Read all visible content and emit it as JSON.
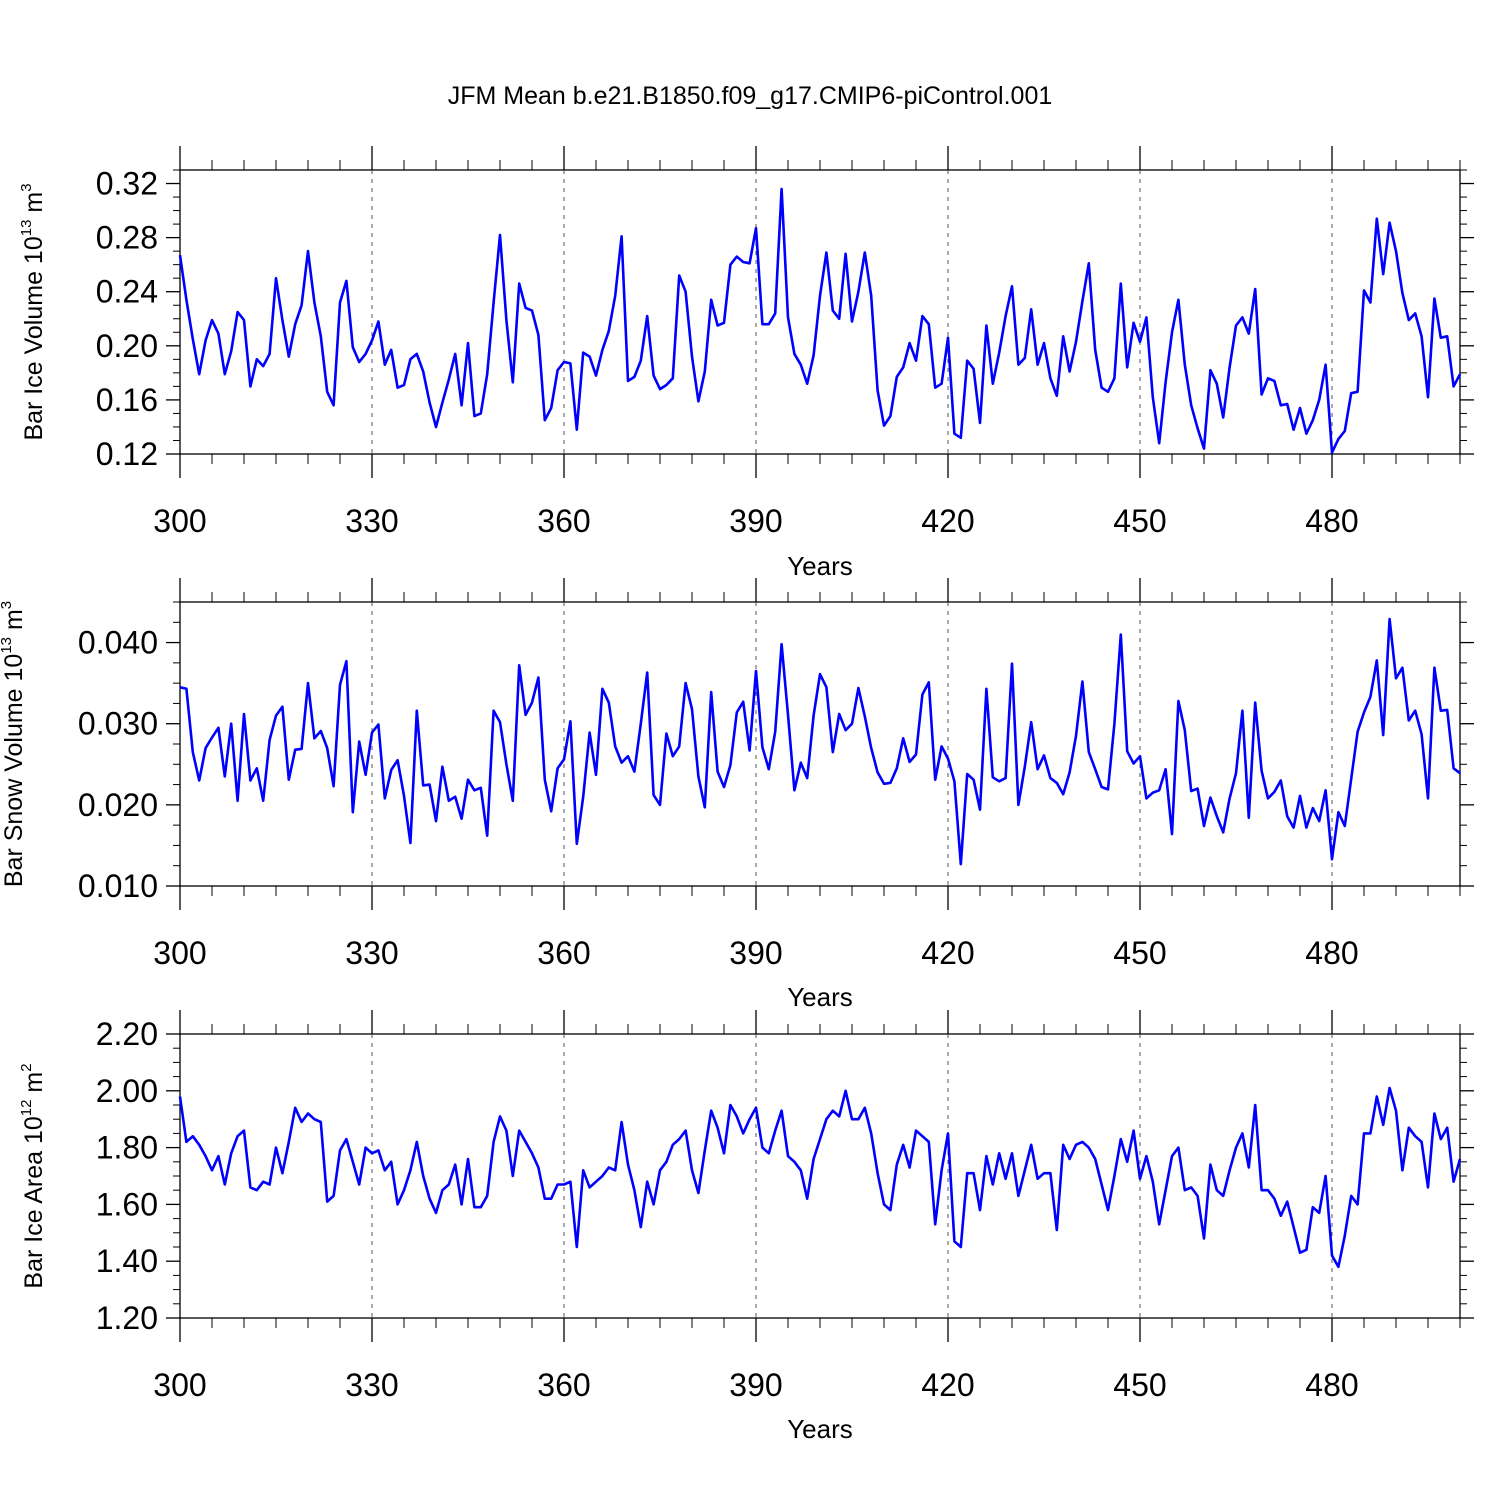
{
  "title": "JFM Mean b.e21.B1850.f09_g17.CMIP6-piControl.001",
  "line_color": "#0000ff",
  "chart_data": [
    {
      "type": "line",
      "ylabel": "Bar Ice Volume 10",
      "ylabel_exp": "13",
      "ylabel_unit": " m",
      "ylabel_unit_exp": "3",
      "xlabel": "Years",
      "xlim": [
        300,
        500
      ],
      "ylim": [
        0.12,
        0.33
      ],
      "x_ticks": [
        300,
        330,
        360,
        390,
        420,
        450,
        480
      ],
      "x_tick_labels": [
        "300",
        "330",
        "360",
        "390",
        "420",
        "450",
        "480"
      ],
      "y_ticks": [
        0.12,
        0.16,
        0.2,
        0.24,
        0.28,
        0.32
      ],
      "y_tick_labels": [
        "0.12",
        "0.16",
        "0.20",
        "0.24",
        "0.28",
        "0.32"
      ],
      "x_start": 300,
      "values": [
        0.267,
        0.234,
        0.205,
        0.179,
        0.204,
        0.219,
        0.209,
        0.179,
        0.196,
        0.225,
        0.219,
        0.17,
        0.19,
        0.185,
        0.194,
        0.25,
        0.219,
        0.192,
        0.216,
        0.23,
        0.27,
        0.232,
        0.207,
        0.166,
        0.156,
        0.232,
        0.248,
        0.199,
        0.188,
        0.194,
        0.204,
        0.218,
        0.186,
        0.197,
        0.169,
        0.171,
        0.19,
        0.194,
        0.181,
        0.158,
        0.14,
        0.158,
        0.175,
        0.194,
        0.156,
        0.202,
        0.148,
        0.15,
        0.179,
        0.232,
        0.282,
        0.219,
        0.173,
        0.246,
        0.228,
        0.226,
        0.208,
        0.145,
        0.154,
        0.182,
        0.188,
        0.187,
        0.138,
        0.195,
        0.192,
        0.178,
        0.197,
        0.211,
        0.237,
        0.281,
        0.174,
        0.177,
        0.189,
        0.222,
        0.178,
        0.168,
        0.171,
        0.176,
        0.252,
        0.24,
        0.192,
        0.159,
        0.181,
        0.234,
        0.215,
        0.217,
        0.26,
        0.266,
        0.262,
        0.261,
        0.287,
        0.216,
        0.216,
        0.224,
        0.316,
        0.221,
        0.194,
        0.186,
        0.172,
        0.193,
        0.237,
        0.269,
        0.226,
        0.22,
        0.268,
        0.218,
        0.24,
        0.269,
        0.237,
        0.167,
        0.141,
        0.148,
        0.177,
        0.184,
        0.202,
        0.189,
        0.222,
        0.216,
        0.169,
        0.172,
        0.206,
        0.135,
        0.132,
        0.189,
        0.183,
        0.143,
        0.215,
        0.172,
        0.195,
        0.222,
        0.244,
        0.186,
        0.191,
        0.227,
        0.186,
        0.202,
        0.176,
        0.163,
        0.207,
        0.181,
        0.203,
        0.233,
        0.261,
        0.197,
        0.169,
        0.166,
        0.176,
        0.246,
        0.184,
        0.217,
        0.203,
        0.221,
        0.162,
        0.128,
        0.173,
        0.21,
        0.234,
        0.186,
        0.156,
        0.139,
        0.124,
        0.182,
        0.172,
        0.147,
        0.184,
        0.215,
        0.221,
        0.209,
        0.242,
        0.164,
        0.176,
        0.174,
        0.156,
        0.157,
        0.138,
        0.154,
        0.135,
        0.145,
        0.16,
        0.186,
        0.121,
        0.131,
        0.137,
        0.165,
        0.166,
        0.241,
        0.232,
        0.294,
        0.253,
        0.291,
        0.27,
        0.239,
        0.219,
        0.224,
        0.207,
        0.162,
        0.235,
        0.206,
        0.207,
        0.17,
        0.179
      ]
    },
    {
      "type": "line",
      "ylabel": "Bar Snow Volume 10",
      "ylabel_exp": "13",
      "ylabel_unit": " m",
      "ylabel_unit_exp": "3",
      "xlabel": "Years",
      "xlim": [
        300,
        500
      ],
      "ylim": [
        0.01,
        0.045
      ],
      "x_ticks": [
        300,
        330,
        360,
        390,
        420,
        450,
        480
      ],
      "x_tick_labels": [
        "300",
        "330",
        "360",
        "390",
        "420",
        "450",
        "480"
      ],
      "y_ticks": [
        0.01,
        0.02,
        0.03,
        0.04
      ],
      "y_tick_labels": [
        "0.010",
        "0.020",
        "0.030",
        "0.040"
      ],
      "x_start": 300,
      "values": [
        0.0345,
        0.0343,
        0.0265,
        0.023,
        0.027,
        0.0283,
        0.0295,
        0.0235,
        0.03,
        0.0205,
        0.0312,
        0.023,
        0.0245,
        0.0205,
        0.028,
        0.031,
        0.0321,
        0.0231,
        0.0268,
        0.0269,
        0.035,
        0.0282,
        0.0291,
        0.027,
        0.0223,
        0.0348,
        0.0377,
        0.0191,
        0.0278,
        0.0237,
        0.0289,
        0.0299,
        0.0208,
        0.0243,
        0.0255,
        0.0211,
        0.0153,
        0.0316,
        0.0224,
        0.0225,
        0.018,
        0.0247,
        0.0205,
        0.021,
        0.0183,
        0.0231,
        0.0218,
        0.0221,
        0.0162,
        0.0316,
        0.0302,
        0.025,
        0.0205,
        0.0372,
        0.0311,
        0.0326,
        0.0357,
        0.0231,
        0.0192,
        0.0245,
        0.0256,
        0.0303,
        0.0152,
        0.021,
        0.0289,
        0.0237,
        0.0343,
        0.0326,
        0.0272,
        0.0252,
        0.026,
        0.0241,
        0.03,
        0.0363,
        0.0212,
        0.02,
        0.0288,
        0.026,
        0.0272,
        0.035,
        0.0318,
        0.0235,
        0.0197,
        0.0339,
        0.0241,
        0.0222,
        0.0249,
        0.0314,
        0.0327,
        0.0267,
        0.0365,
        0.0271,
        0.0244,
        0.029,
        0.0398,
        0.0311,
        0.0218,
        0.0252,
        0.0233,
        0.031,
        0.0361,
        0.0345,
        0.0265,
        0.0312,
        0.0292,
        0.03,
        0.0344,
        0.0309,
        0.027,
        0.024,
        0.0226,
        0.0227,
        0.0245,
        0.0282,
        0.0253,
        0.0262,
        0.0336,
        0.0351,
        0.0231,
        0.0272,
        0.0257,
        0.0229,
        0.0127,
        0.0238,
        0.0231,
        0.0194,
        0.0343,
        0.0234,
        0.0229,
        0.0233,
        0.0374,
        0.02,
        0.0247,
        0.0302,
        0.0244,
        0.0261,
        0.0233,
        0.0227,
        0.0213,
        0.024,
        0.0285,
        0.0352,
        0.0265,
        0.0244,
        0.0222,
        0.0219,
        0.03,
        0.041,
        0.0266,
        0.0251,
        0.026,
        0.0208,
        0.0215,
        0.0218,
        0.0244,
        0.0164,
        0.0328,
        0.0292,
        0.0217,
        0.022,
        0.0174,
        0.0209,
        0.0186,
        0.0166,
        0.0208,
        0.0239,
        0.0316,
        0.0184,
        0.0326,
        0.0242,
        0.0208,
        0.0216,
        0.023,
        0.0186,
        0.0172,
        0.0211,
        0.0172,
        0.0196,
        0.018,
        0.0218,
        0.0133,
        0.0191,
        0.0174,
        0.0232,
        0.029,
        0.0314,
        0.0333,
        0.0378,
        0.0286,
        0.0429,
        0.0356,
        0.0369,
        0.0304,
        0.0316,
        0.0287,
        0.0208,
        0.0369,
        0.0316,
        0.0317,
        0.0245,
        0.0239
      ]
    },
    {
      "type": "line",
      "ylabel": "Bar Ice Area 10",
      "ylabel_exp": "12",
      "ylabel_unit": " m",
      "ylabel_unit_exp": "2",
      "xlabel": "Years",
      "xlim": [
        300,
        500
      ],
      "ylim": [
        1.2,
        2.2
      ],
      "x_ticks": [
        300,
        330,
        360,
        390,
        420,
        450,
        480
      ],
      "x_tick_labels": [
        "300",
        "330",
        "360",
        "390",
        "420",
        "450",
        "480"
      ],
      "y_ticks": [
        1.2,
        1.4,
        1.6,
        1.8,
        2.0,
        2.2
      ],
      "y_tick_labels": [
        "1.20",
        "1.40",
        "1.60",
        "1.80",
        "2.00",
        "2.20"
      ],
      "x_start": 300,
      "values": [
        1.98,
        1.82,
        1.84,
        1.81,
        1.77,
        1.72,
        1.77,
        1.67,
        1.78,
        1.84,
        1.86,
        1.66,
        1.65,
        1.68,
        1.67,
        1.8,
        1.71,
        1.82,
        1.94,
        1.89,
        1.92,
        1.9,
        1.89,
        1.61,
        1.63,
        1.79,
        1.83,
        1.75,
        1.67,
        1.8,
        1.78,
        1.79,
        1.72,
        1.75,
        1.6,
        1.65,
        1.72,
        1.82,
        1.7,
        1.62,
        1.57,
        1.65,
        1.67,
        1.74,
        1.6,
        1.76,
        1.59,
        1.59,
        1.63,
        1.82,
        1.91,
        1.86,
        1.7,
        1.86,
        1.82,
        1.78,
        1.73,
        1.62,
        1.62,
        1.67,
        1.67,
        1.68,
        1.45,
        1.72,
        1.66,
        1.68,
        1.7,
        1.73,
        1.72,
        1.89,
        1.74,
        1.65,
        1.52,
        1.68,
        1.6,
        1.72,
        1.75,
        1.81,
        1.83,
        1.86,
        1.72,
        1.64,
        1.79,
        1.93,
        1.87,
        1.78,
        1.95,
        1.91,
        1.85,
        1.9,
        1.94,
        1.8,
        1.78,
        1.86,
        1.93,
        1.77,
        1.75,
        1.72,
        1.62,
        1.76,
        1.83,
        1.9,
        1.93,
        1.91,
        2.0,
        1.9,
        1.9,
        1.94,
        1.85,
        1.71,
        1.6,
        1.58,
        1.74,
        1.81,
        1.73,
        1.86,
        1.84,
        1.82,
        1.53,
        1.72,
        1.85,
        1.47,
        1.45,
        1.71,
        1.71,
        1.58,
        1.77,
        1.67,
        1.78,
        1.69,
        1.78,
        1.63,
        1.72,
        1.81,
        1.69,
        1.71,
        1.71,
        1.51,
        1.81,
        1.76,
        1.81,
        1.82,
        1.8,
        1.76,
        1.67,
        1.58,
        1.7,
        1.83,
        1.75,
        1.86,
        1.69,
        1.77,
        1.68,
        1.53,
        1.65,
        1.77,
        1.8,
        1.65,
        1.66,
        1.63,
        1.48,
        1.74,
        1.65,
        1.63,
        1.72,
        1.8,
        1.85,
        1.73,
        1.95,
        1.65,
        1.65,
        1.62,
        1.56,
        1.61,
        1.52,
        1.43,
        1.44,
        1.59,
        1.57,
        1.7,
        1.42,
        1.38,
        1.49,
        1.63,
        1.6,
        1.85,
        1.85,
        1.98,
        1.88,
        2.01,
        1.93,
        1.72,
        1.87,
        1.84,
        1.82,
        1.66,
        1.92,
        1.83,
        1.87,
        1.68,
        1.76
      ]
    }
  ]
}
